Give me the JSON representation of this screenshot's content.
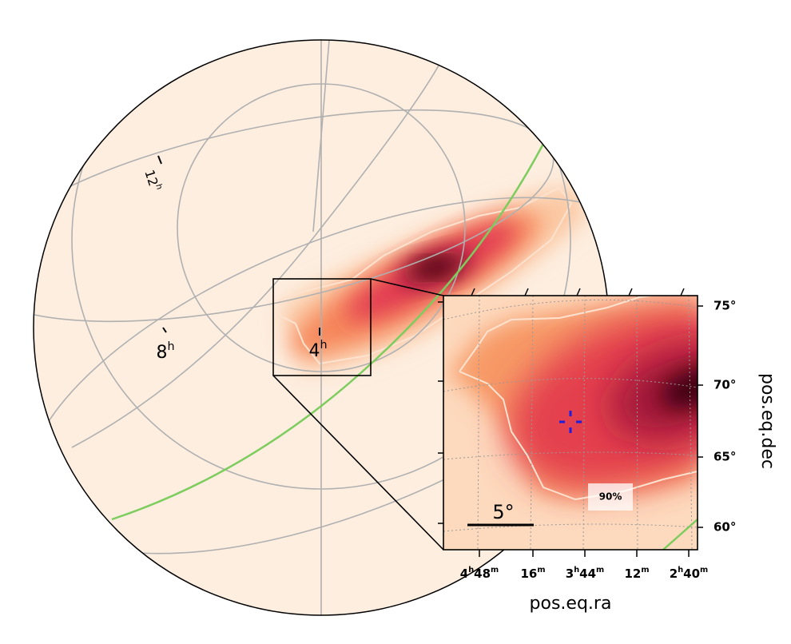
{
  "allsky": {
    "ra_labels": [
      [
        {
          "text": "12"
        },
        {
          "sup": "h"
        }
      ],
      [
        {
          "text": "8"
        },
        {
          "sup": "h"
        }
      ],
      [
        {
          "text": "4"
        },
        {
          "sup": "h"
        }
      ]
    ]
  },
  "inset": {
    "dec_ticks": [
      "75°",
      "70°",
      "65°",
      "60°"
    ],
    "dec_axis_label": "pos.eq.dec",
    "ra_ticks": [
      [
        {
          "text": "4"
        },
        {
          "sup": "h"
        },
        {
          "text": "48"
        },
        {
          "sup": "m"
        }
      ],
      [
        {
          "text": "16"
        },
        {
          "sup": "m"
        }
      ],
      [
        {
          "text": "3"
        },
        {
          "sup": "h"
        },
        {
          "text": "44"
        },
        {
          "sup": "m"
        }
      ],
      [
        {
          "text": "12"
        },
        {
          "sup": "m"
        }
      ],
      [
        {
          "text": "2"
        },
        {
          "sup": "h"
        },
        {
          "text": "40"
        },
        {
          "sup": "m"
        }
      ]
    ],
    "ra_axis_label": "pos.eq.ra",
    "scale_bar": "5°",
    "contour_label": "90%"
  }
}
